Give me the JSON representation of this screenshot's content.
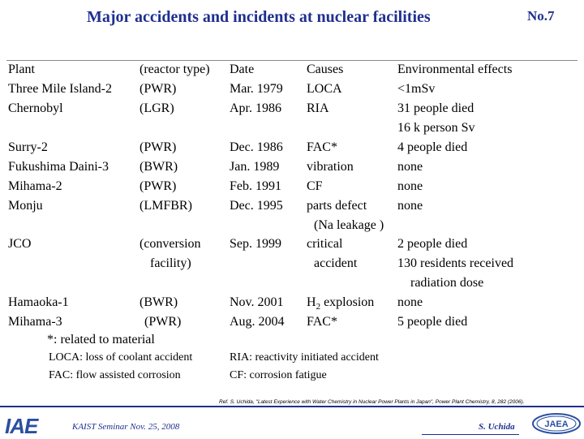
{
  "title": "Major accidents and incidents at nuclear facilities",
  "slide_number": "No.7",
  "table": {
    "headers": [
      "Plant",
      "(reactor type)",
      "Date",
      "Causes",
      "Environmental effects"
    ],
    "rows": [
      {
        "plant": [
          "Three Mile Island-2"
        ],
        "type": [
          "(PWR)"
        ],
        "date": [
          "Mar. 1979"
        ],
        "cause": [
          "LOCA"
        ],
        "effect": [
          "<1mSv"
        ]
      },
      {
        "plant": [
          "Chernobyl"
        ],
        "type": [
          "(LGR)"
        ],
        "date": [
          "Apr. 1986"
        ],
        "cause": [
          "RIA"
        ],
        "effect": [
          "31 people died",
          "16 k person Sv"
        ]
      },
      {
        "plant": [
          "Surry-2"
        ],
        "type": [
          "(PWR)"
        ],
        "date": [
          "Dec. 1986"
        ],
        "cause": [
          "FAC*"
        ],
        "effect": [
          "4 people died"
        ]
      },
      {
        "plant": [
          "Fukushima Daini-3"
        ],
        "type": [
          "(BWR)"
        ],
        "date": [
          "Jan. 1989"
        ],
        "cause": [
          "vibration"
        ],
        "effect": [
          "none"
        ]
      },
      {
        "plant": [
          "Mihama-2"
        ],
        "type": [
          "(PWR)"
        ],
        "date": [
          "Feb. 1991"
        ],
        "cause": [
          "CF"
        ],
        "effect": [
          "none"
        ]
      },
      {
        "plant": [
          "Monju"
        ],
        "type": [
          "(LMFBR)"
        ],
        "date": [
          "Dec. 1995"
        ],
        "cause": [
          "parts defect",
          "(Na leakage )"
        ],
        "effect": [
          "none"
        ]
      },
      {
        "plant": [
          "JCO"
        ],
        "type": [
          "(conversion",
          "facility)"
        ],
        "date": [
          "Sep.    1999"
        ],
        "cause": [
          "critical",
          "accident"
        ],
        "effect": [
          "2 people died",
          "130 residents received",
          "radiation dose"
        ]
      },
      {
        "plant": [
          "Hamaoka-1"
        ],
        "type": [
          "(BWR)"
        ],
        "date": [
          "Nov. 2001"
        ],
        "cause": [
          "H2 explosion"
        ],
        "effect": [
          "none"
        ]
      },
      {
        "plant": [
          "Mihama-3"
        ],
        "type": [
          "(PWR)"
        ],
        "date": [
          "Aug. 2004"
        ],
        "cause": [
          "FAC*"
        ],
        "effect": [
          "5 people died"
        ]
      }
    ]
  },
  "footnote": "*: related to material",
  "abbreviations": {
    "loca": "LOCA: loss of coolant accident",
    "ria": "RIA: reactivity initiated accident",
    "fac": "FAC: flow assisted corrosion",
    "cf": "CF: corrosion fatigue"
  },
  "reference": "Ref. S. Uchida, \"Latest Experience with Water Chemistry in Nuclear Power Plants in Japan\", Power Plant Chemistry, 8, 282 (2006).",
  "footer": {
    "left_logo": "IAE",
    "seminar": "KAIST Seminar  Nov. 25, 2008",
    "author": "S. Uchida",
    "right_logo": "JAEA"
  },
  "colors": {
    "title": "#1f2f8f",
    "logo_blue": "#2b4fa0"
  }
}
